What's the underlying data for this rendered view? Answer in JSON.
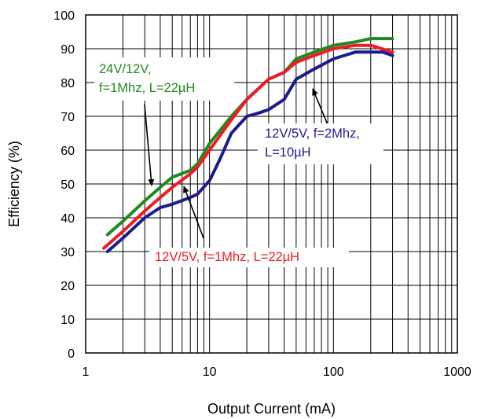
{
  "chart_data": {
    "type": "line",
    "xscale": "log",
    "xlim": [
      1,
      1000
    ],
    "ylim": [
      0,
      100
    ],
    "grid": true,
    "xlabel": "Output Current (mA)",
    "ylabel": "Efficiency (%)",
    "xtick_labels": [
      "1",
      "10",
      "100",
      "1000"
    ],
    "ytick_labels": [
      "0",
      "10",
      "20",
      "30",
      "40",
      "50",
      "60",
      "70",
      "80",
      "90",
      "100"
    ],
    "series": [
      {
        "name": "24V/12V, f=1Mhz, L=22µH",
        "color": "#1f8a1f",
        "x": [
          1.5,
          2,
          3,
          4,
          5,
          7,
          8,
          10,
          15,
          20,
          30,
          40,
          50,
          70,
          100,
          150,
          200,
          300
        ],
        "y": [
          35,
          39,
          45,
          49,
          52,
          54,
          56,
          62,
          70,
          75,
          81,
          83,
          87,
          89,
          91,
          92,
          93,
          93
        ]
      },
      {
        "name": "12V/5V, f=1Mhz, L=22µH",
        "color": "#ee1c24",
        "x": [
          1.4,
          2,
          3,
          4,
          5,
          7,
          8,
          10,
          15,
          20,
          30,
          40,
          50,
          70,
          100,
          150,
          200,
          300
        ],
        "y": [
          31,
          36,
          42,
          46,
          49,
          53,
          55,
          60,
          69,
          75,
          81,
          83,
          86,
          88,
          90,
          91,
          91,
          89
        ]
      },
      {
        "name": "12V/5V, f=2Mhz, L=10µH",
        "color": "#1c1c8c",
        "x": [
          1.5,
          2,
          3,
          4,
          5,
          7,
          8,
          10,
          12,
          15,
          20,
          25,
          30,
          40,
          50,
          70,
          100,
          150,
          200,
          250,
          300
        ],
        "y": [
          30,
          34,
          40,
          43,
          44,
          46,
          47,
          51,
          57,
          65,
          70,
          71,
          72,
          75,
          81,
          84,
          87,
          89,
          89,
          89,
          88
        ]
      }
    ],
    "annotations": [
      {
        "lines": [
          "24V/12V,",
          "f=1Mhz, L=22µH"
        ],
        "color": "#1f8a1f"
      },
      {
        "lines": [
          "12V/5V, f=2Mhz,",
          "L=10µH"
        ],
        "color": "#1c1c8c"
      },
      {
        "lines": [
          "12V/5V, f=1Mhz, L=22µH"
        ],
        "color": "#ee1c24"
      }
    ]
  }
}
